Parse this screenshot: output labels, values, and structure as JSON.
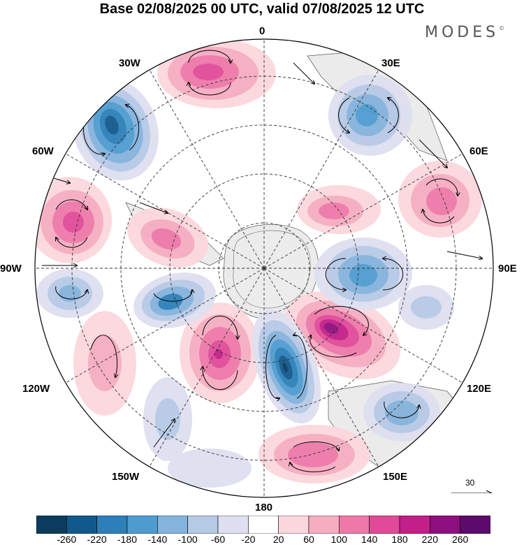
{
  "title": "Base 02/08/2025 00 UTC, valid 07/08/2025 12 UTC",
  "brand": {
    "name": "MODES",
    "mark": "©"
  },
  "map": {
    "projection": "south-polar-stereographic",
    "longitude_labels": {
      "lon_0": "0",
      "lon_30e": "30E",
      "lon_60e": "60E",
      "lon_90e": "90E",
      "lon_120e": "120E",
      "lon_150e": "150E",
      "lon_180": "180",
      "lon_150w": "150W",
      "lon_120w": "120W",
      "lon_90w": "90W",
      "lon_60w": "60W",
      "lon_30w": "30W"
    }
  },
  "vector_reference": {
    "label": "30"
  },
  "colorbar": {
    "ticks": [
      "-260",
      "-220",
      "-180",
      "-140",
      "-100",
      "-60",
      "-20",
      "20",
      "60",
      "100",
      "140",
      "180",
      "220",
      "260"
    ],
    "colors": [
      "#0b3c5d",
      "#11598c",
      "#2c7fb8",
      "#4e9bd0",
      "#84b3dc",
      "#b6c9e5",
      "#dedff0",
      "#ffffff",
      "#fbd7dd",
      "#f5adc0",
      "#ee79a8",
      "#e04a98",
      "#c21f88",
      "#8e107e",
      "#5c0a6b"
    ]
  },
  "colors": {
    "land": "#ebebeb",
    "positive": "#e04a98",
    "negative": "#2c7fb8"
  }
}
